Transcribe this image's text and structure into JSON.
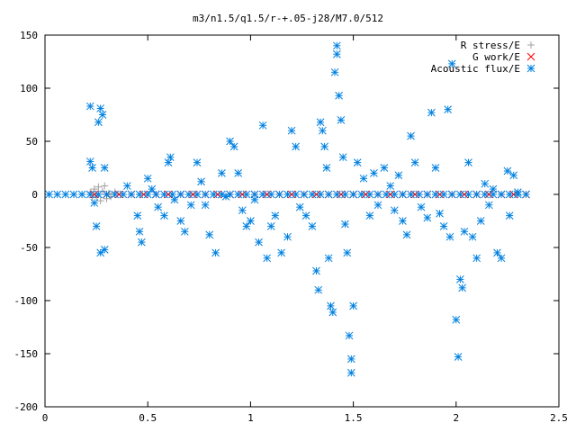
{
  "chart_data": {
    "type": "scatter",
    "title": "m3/n1.5/q1.5/r-+.05-j28/M7.0/512",
    "xlabel": "",
    "ylabel": "",
    "xlim": [
      0,
      2.5
    ],
    "ylim": [
      -200,
      150
    ],
    "x_ticks": [
      "0",
      "0.5",
      "1",
      "1.5",
      "2",
      "2.5"
    ],
    "y_ticks": [
      "150",
      "100",
      "50",
      "0",
      "-50",
      "-100",
      "-150",
      "-200"
    ],
    "grid": false,
    "legend_position": "top-right",
    "colors": {
      "r_stress": "#a0a0a0",
      "g_work": "#ff0000",
      "acoustic_flux": "#0080e0"
    },
    "series": [
      {
        "name": "R stress/E",
        "marker": "plus",
        "points": [
          [
            0.22,
            2
          ],
          [
            0.23,
            -3
          ],
          [
            0.24,
            5
          ],
          [
            0.25,
            -2
          ],
          [
            0.26,
            7
          ],
          [
            0.27,
            -6
          ],
          [
            0.28,
            3
          ],
          [
            0.29,
            8
          ],
          [
            0.3,
            -4
          ],
          [
            0.31,
            1
          ],
          [
            0.32,
            -2
          ],
          [
            0.34,
            2
          ]
        ]
      },
      {
        "name": "G work/E",
        "marker": "cross",
        "points": [
          [
            0.24,
            0
          ],
          [
            0.3,
            0
          ],
          [
            0.36,
            0
          ],
          [
            0.42,
            0
          ],
          [
            0.48,
            0
          ],
          [
            0.54,
            0
          ],
          [
            0.6,
            0
          ],
          [
            0.66,
            0
          ],
          [
            0.72,
            0
          ],
          [
            0.78,
            0
          ],
          [
            0.84,
            0
          ],
          [
            0.9,
            0
          ],
          [
            0.96,
            0
          ],
          [
            1.02,
            0
          ],
          [
            1.08,
            0
          ],
          [
            1.14,
            0
          ],
          [
            1.2,
            0
          ],
          [
            1.26,
            0
          ],
          [
            1.32,
            0
          ],
          [
            1.38,
            0
          ],
          [
            1.44,
            0
          ],
          [
            1.5,
            0
          ],
          [
            1.56,
            0
          ],
          [
            1.62,
            0
          ],
          [
            1.68,
            0
          ],
          [
            1.74,
            0
          ],
          [
            1.8,
            0
          ],
          [
            1.86,
            0
          ],
          [
            1.92,
            0
          ],
          [
            1.98,
            0
          ],
          [
            2.04,
            0
          ],
          [
            2.1,
            0
          ],
          [
            2.16,
            0
          ],
          [
            2.22,
            0
          ],
          [
            2.28,
            0
          ],
          [
            2.34,
            0
          ]
        ]
      },
      {
        "name": "Acoustic flux/E",
        "marker": "star",
        "points": [
          [
            0.02,
            0
          ],
          [
            0.06,
            0
          ],
          [
            0.1,
            0
          ],
          [
            0.14,
            0
          ],
          [
            0.18,
            0
          ],
          [
            0.22,
            0
          ],
          [
            0.26,
            0
          ],
          [
            0.3,
            0
          ],
          [
            0.34,
            0
          ],
          [
            0.38,
            0
          ],
          [
            0.42,
            0
          ],
          [
            0.46,
            0
          ],
          [
            0.5,
            0
          ],
          [
            0.54,
            0
          ],
          [
            0.58,
            0
          ],
          [
            0.62,
            0
          ],
          [
            0.66,
            0
          ],
          [
            0.7,
            0
          ],
          [
            0.74,
            0
          ],
          [
            0.78,
            0
          ],
          [
            0.82,
            0
          ],
          [
            0.86,
            0
          ],
          [
            0.9,
            0
          ],
          [
            0.94,
            0
          ],
          [
            0.98,
            0
          ],
          [
            1.02,
            0
          ],
          [
            1.06,
            0
          ],
          [
            1.1,
            0
          ],
          [
            1.14,
            0
          ],
          [
            1.18,
            0
          ],
          [
            1.22,
            0
          ],
          [
            1.26,
            0
          ],
          [
            1.3,
            0
          ],
          [
            1.34,
            0
          ],
          [
            1.38,
            0
          ],
          [
            1.42,
            0
          ],
          [
            1.46,
            0
          ],
          [
            1.5,
            0
          ],
          [
            1.54,
            0
          ],
          [
            1.58,
            0
          ],
          [
            1.62,
            0
          ],
          [
            1.66,
            0
          ],
          [
            1.7,
            0
          ],
          [
            1.74,
            0
          ],
          [
            1.78,
            0
          ],
          [
            1.82,
            0
          ],
          [
            1.86,
            0
          ],
          [
            1.9,
            0
          ],
          [
            1.94,
            0
          ],
          [
            1.98,
            0
          ],
          [
            2.02,
            0
          ],
          [
            2.06,
            0
          ],
          [
            2.1,
            0
          ],
          [
            2.14,
            0
          ],
          [
            2.18,
            0
          ],
          [
            2.22,
            0
          ],
          [
            2.26,
            0
          ],
          [
            2.3,
            0
          ],
          [
            2.34,
            0
          ],
          [
            0.22,
            83
          ],
          [
            0.27,
            81
          ],
          [
            0.28,
            75
          ],
          [
            0.26,
            68
          ],
          [
            0.22,
            31
          ],
          [
            0.23,
            25
          ],
          [
            0.29,
            25
          ],
          [
            0.24,
            -8
          ],
          [
            0.25,
            -30
          ],
          [
            0.27,
            -55
          ],
          [
            0.29,
            -52
          ],
          [
            0.4,
            8
          ],
          [
            0.45,
            -20
          ],
          [
            0.46,
            -35
          ],
          [
            0.47,
            -45
          ],
          [
            0.5,
            15
          ],
          [
            0.52,
            5
          ],
          [
            0.55,
            -12
          ],
          [
            0.58,
            -20
          ],
          [
            0.6,
            30
          ],
          [
            0.61,
            35
          ],
          [
            0.63,
            -5
          ],
          [
            0.66,
            -25
          ],
          [
            0.68,
            -35
          ],
          [
            0.71,
            -10
          ],
          [
            0.74,
            30
          ],
          [
            0.76,
            12
          ],
          [
            0.78,
            -10
          ],
          [
            0.8,
            -38
          ],
          [
            0.83,
            -55
          ],
          [
            0.86,
            20
          ],
          [
            0.88,
            -2
          ],
          [
            0.9,
            50
          ],
          [
            0.92,
            45
          ],
          [
            0.94,
            20
          ],
          [
            0.96,
            -15
          ],
          [
            0.98,
            -30
          ],
          [
            1.0,
            -25
          ],
          [
            1.02,
            -5
          ],
          [
            1.04,
            -45
          ],
          [
            1.06,
            65
          ],
          [
            1.08,
            -60
          ],
          [
            1.1,
            -30
          ],
          [
            1.12,
            -20
          ],
          [
            1.15,
            -55
          ],
          [
            1.18,
            -40
          ],
          [
            1.2,
            60
          ],
          [
            1.22,
            45
          ],
          [
            1.24,
            -12
          ],
          [
            1.27,
            -20
          ],
          [
            1.3,
            -30
          ],
          [
            1.32,
            -72
          ],
          [
            1.33,
            -90
          ],
          [
            1.34,
            68
          ],
          [
            1.35,
            60
          ],
          [
            1.36,
            45
          ],
          [
            1.37,
            25
          ],
          [
            1.38,
            -60
          ],
          [
            1.39,
            -105
          ],
          [
            1.4,
            -111
          ],
          [
            1.41,
            115
          ],
          [
            1.42,
            132
          ],
          [
            1.42,
            140
          ],
          [
            1.43,
            93
          ],
          [
            1.44,
            70
          ],
          [
            1.45,
            35
          ],
          [
            1.46,
            -28
          ],
          [
            1.47,
            -55
          ],
          [
            1.48,
            -133
          ],
          [
            1.49,
            -155
          ],
          [
            1.49,
            -168
          ],
          [
            1.5,
            -105
          ],
          [
            1.52,
            30
          ],
          [
            1.55,
            15
          ],
          [
            1.58,
            -20
          ],
          [
            1.6,
            20
          ],
          [
            1.62,
            -10
          ],
          [
            1.65,
            25
          ],
          [
            1.68,
            8
          ],
          [
            1.7,
            -15
          ],
          [
            1.72,
            18
          ],
          [
            1.74,
            -25
          ],
          [
            1.76,
            -38
          ],
          [
            1.78,
            55
          ],
          [
            1.8,
            30
          ],
          [
            1.83,
            -12
          ],
          [
            1.86,
            -22
          ],
          [
            1.88,
            77
          ],
          [
            1.9,
            25
          ],
          [
            1.92,
            -18
          ],
          [
            1.94,
            -30
          ],
          [
            1.96,
            80
          ],
          [
            1.97,
            -40
          ],
          [
            1.98,
            123
          ],
          [
            2.0,
            -118
          ],
          [
            2.01,
            -153
          ],
          [
            2.02,
            -80
          ],
          [
            2.03,
            -88
          ],
          [
            2.04,
            -35
          ],
          [
            2.06,
            30
          ],
          [
            2.08,
            -40
          ],
          [
            2.1,
            -60
          ],
          [
            2.12,
            -25
          ],
          [
            2.14,
            10
          ],
          [
            2.16,
            -10
          ],
          [
            2.18,
            5
          ],
          [
            2.2,
            -55
          ],
          [
            2.22,
            -60
          ],
          [
            2.25,
            22
          ],
          [
            2.26,
            -20
          ],
          [
            2.28,
            18
          ],
          [
            2.3,
            2
          ]
        ]
      }
    ]
  }
}
